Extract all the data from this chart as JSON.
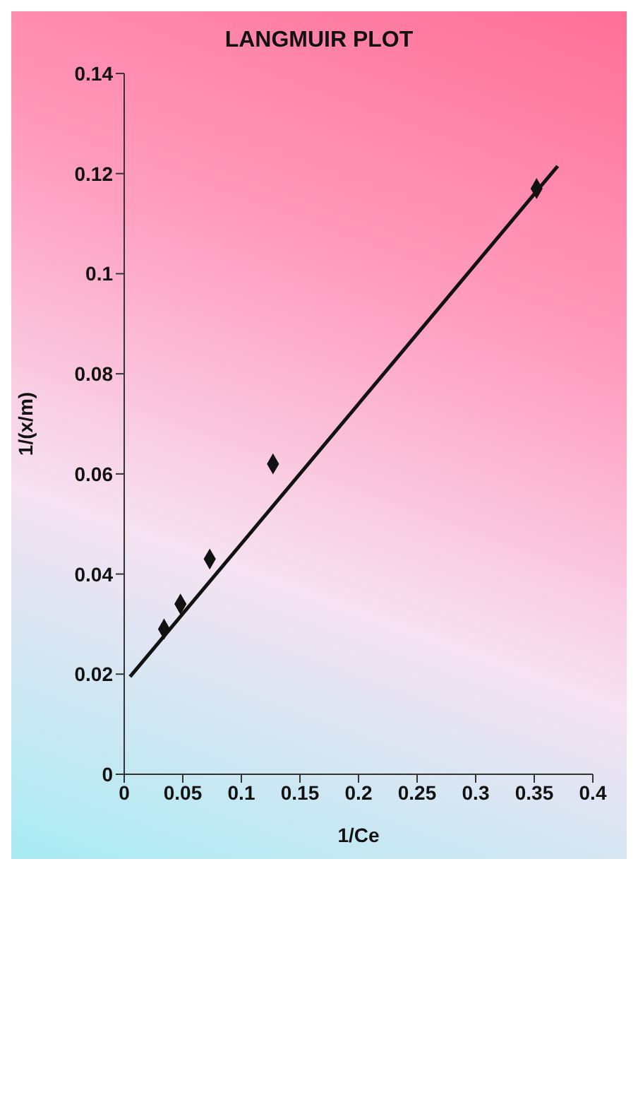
{
  "chart_data": {
    "type": "scatter",
    "title": "LANGMUIR PLOT",
    "xlabel": "1/Ce",
    "ylabel": "1/(x/m)",
    "series": [
      {
        "color": "#111111",
        "marker": "diamond",
        "x": [
          0.034,
          0.048,
          0.073,
          0.127,
          0.352
        ],
        "values": [
          0.029,
          0.034,
          0.043,
          0.062,
          0.117
        ]
      },
      {
        "type": "line",
        "marker": "none",
        "color": "#111111",
        "x": [
          0.005,
          0.37
        ],
        "values": [
          0.0195,
          0.1215
        ]
      }
    ],
    "xlim": [
      0,
      0.4
    ],
    "xticks": [
      0,
      0.05,
      0.1,
      0.15,
      0.2,
      0.25,
      0.3,
      0.35,
      0.4
    ],
    "ylim": [
      0,
      0.14
    ],
    "yticks": [
      0,
      0.02,
      0.04,
      0.06,
      0.08,
      0.1,
      0.12,
      0.14
    ],
    "grid": false,
    "legend": false
  }
}
